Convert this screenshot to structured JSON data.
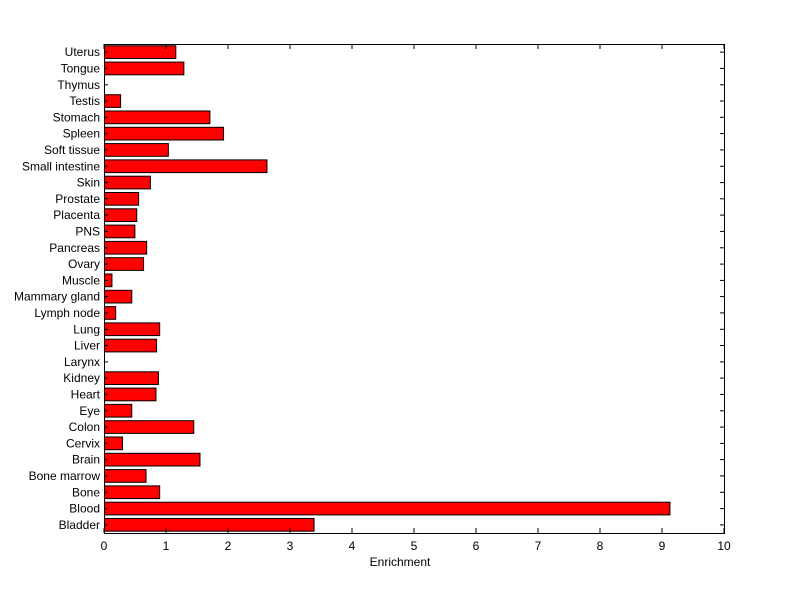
{
  "chart_data": {
    "type": "bar",
    "orientation": "horizontal",
    "xlabel": "Enrichment",
    "ylabel": "",
    "title": "",
    "xlim": [
      0,
      10
    ],
    "xticks": [
      0,
      1,
      2,
      3,
      4,
      5,
      6,
      7,
      8,
      9,
      10
    ],
    "grid": false,
    "bar_color": "#ff0000",
    "categories": [
      "Bladder",
      "Blood",
      "Bone",
      "Bone marrow",
      "Brain",
      "Cervix",
      "Colon",
      "Eye",
      "Heart",
      "Kidney",
      "Larynx",
      "Liver",
      "Lung",
      "Lymph node",
      "Mammary gland",
      "Muscle",
      "Ovary",
      "Pancreas",
      "PNS",
      "Placenta",
      "Prostate",
      "Skin",
      "Small intestine",
      "Soft tissue",
      "Spleen",
      "Stomach",
      "Testis",
      "Thymus",
      "Tongue",
      "Uterus"
    ],
    "values": [
      3.38,
      9.12,
      0.89,
      0.67,
      1.54,
      0.29,
      1.44,
      0.44,
      0.83,
      0.87,
      0.0,
      0.84,
      0.89,
      0.18,
      0.44,
      0.12,
      0.63,
      0.68,
      0.49,
      0.52,
      0.55,
      0.74,
      2.62,
      1.03,
      1.92,
      1.7,
      0.26,
      0.0,
      1.28,
      1.15
    ]
  }
}
